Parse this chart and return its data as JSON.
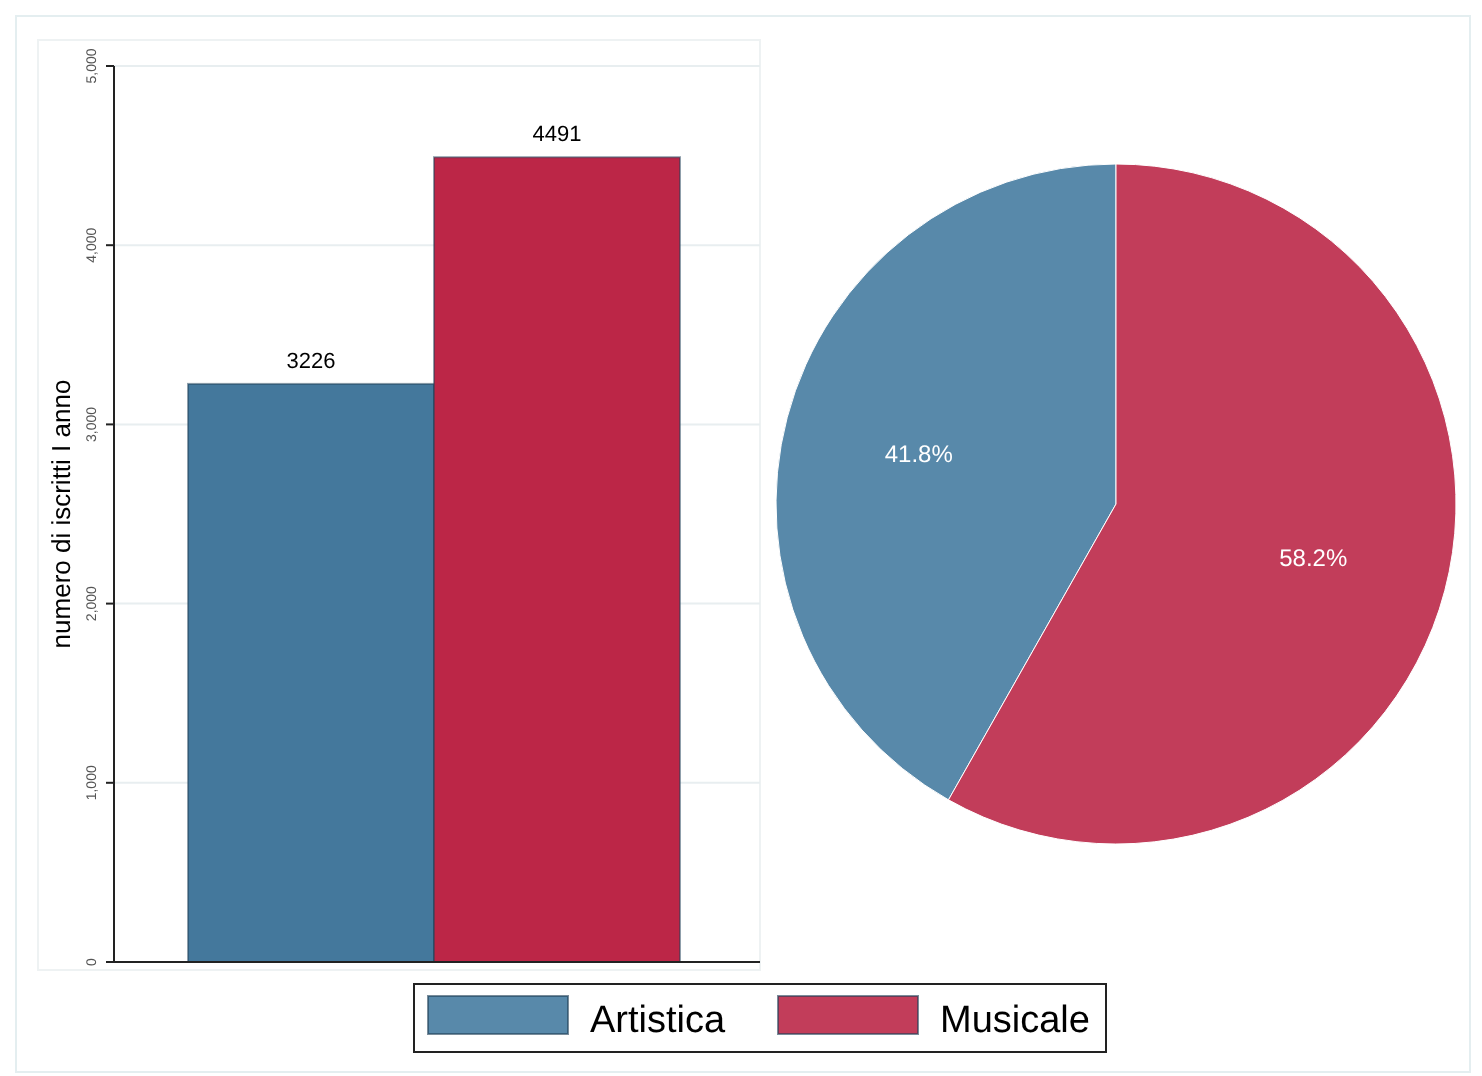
{
  "chart_data": [
    {
      "type": "bar",
      "ylabel": "numero di iscritti I anno",
      "categories": [
        null,
        null
      ],
      "values": [
        3226,
        4491
      ],
      "colors": [
        "#44789c",
        "#bc2647"
      ],
      "ylim": [
        0,
        5000
      ],
      "yticks": [
        {
          "value": 0,
          "label": "0"
        },
        {
          "value": 1000,
          "label": "1,000"
        },
        {
          "value": 2000,
          "label": "2,000"
        },
        {
          "value": 3000,
          "label": "3,000"
        },
        {
          "value": 4000,
          "label": "4,000"
        },
        {
          "value": 5000,
          "label": "5,000"
        }
      ],
      "grid": "y",
      "data_labels": true
    },
    {
      "type": "pie",
      "categories": [
        "Artistica",
        "Musicale"
      ],
      "values": [
        41.8,
        58.2
      ],
      "colors": [
        "#5889aa",
        "#c23d5a"
      ],
      "value_labels": [
        "41.8%",
        "58.2%"
      ],
      "legend": "bottom"
    }
  ]
}
